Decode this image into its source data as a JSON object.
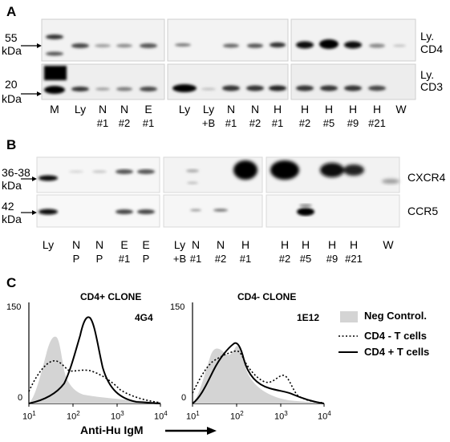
{
  "panelA": {
    "letter": "A",
    "mw_top": "55",
    "mw_top_unit": "kDa",
    "mw_bottom": "20",
    "mw_bottom_unit": "kDa",
    "right_top_1": "Ly.",
    "right_top_2": "CD4",
    "right_bot_1": "Ly.",
    "right_bot_2": "CD3",
    "lanes": [
      {
        "l1": "M",
        "l2": ""
      },
      {
        "l1": "Ly",
        "l2": ""
      },
      {
        "l1": "N",
        "l2": "#1"
      },
      {
        "l1": "N",
        "l2": "#2"
      },
      {
        "l1": "E",
        "l2": "#1"
      },
      {
        "l1": "Ly",
        "l2": ""
      },
      {
        "l1": "Ly",
        "l2": "+B"
      },
      {
        "l1": "N",
        "l2": "#1"
      },
      {
        "l1": "N",
        "l2": "#2"
      },
      {
        "l1": "H",
        "l2": "#1"
      },
      {
        "l1": "H",
        "l2": "#2"
      },
      {
        "l1": "H",
        "l2": "#5"
      },
      {
        "l1": "H",
        "l2": "#9"
      },
      {
        "l1": "H",
        "l2": "#21"
      },
      {
        "l1": "W",
        "l2": ""
      }
    ]
  },
  "panelB": {
    "letter": "B",
    "mw_top": "36-38",
    "mw_top_unit": "kDa",
    "mw_bottom": "42",
    "mw_bottom_unit": "kDa",
    "right_top": "CXCR4",
    "right_bot": "CCR5",
    "lanes": [
      {
        "l1": "Ly",
        "l2": ""
      },
      {
        "l1": "N",
        "l2": "P"
      },
      {
        "l1": "N",
        "l2": "P"
      },
      {
        "l1": "E",
        "l2": "#1"
      },
      {
        "l1": "E",
        "l2": "P"
      },
      {
        "l1": "Ly",
        "l2": "+B"
      },
      {
        "l1": "N",
        "l2": "#1"
      },
      {
        "l1": "N",
        "l2": "#2"
      },
      {
        "l1": "H",
        "l2": "#1"
      },
      {
        "l1": "H",
        "l2": "#2"
      },
      {
        "l1": "H",
        "l2": "#5"
      },
      {
        "l1": "H",
        "l2": "#9"
      },
      {
        "l1": "H",
        "l2": "#21"
      },
      {
        "l1": "W",
        "l2": ""
      }
    ]
  },
  "panelC": {
    "letter": "C",
    "left_title": "CD4+ CLONE",
    "left_id": "4G4",
    "right_title": "CD4- CLONE",
    "right_id": "1E12",
    "y_top": "150",
    "y_bottom": "0",
    "x_ticks": [
      "10",
      "1",
      "10",
      "2",
      "10",
      "3",
      "10",
      "4"
    ],
    "x_axis_title": "Anti-Hu IgM",
    "legend": {
      "neg": "Neg Control.",
      "cd4neg": "CD4 - T cells",
      "cd4pos": "CD4 + T cells"
    },
    "colors": {
      "neg_fill": "#d4d4d4",
      "line": "#000000"
    }
  }
}
